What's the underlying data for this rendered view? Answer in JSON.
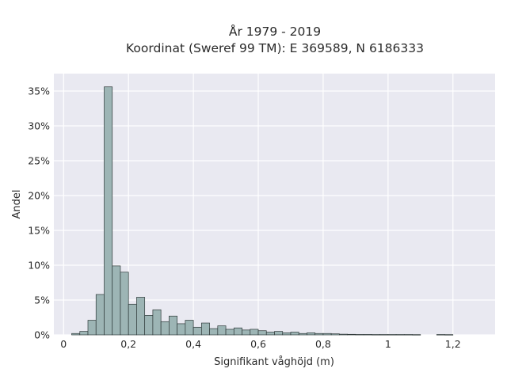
{
  "chart_data": {
    "type": "bar",
    "title_line1": "År 1979 - 2019",
    "title_line2": "Koordinat (Sweref 99 TM): E 369589, N 6186333",
    "xlabel": "Signifikant våghöjd (m)",
    "ylabel": "Andel",
    "xlim": [
      -0.03,
      1.33
    ],
    "ylim": [
      0,
      0.375
    ],
    "grid": true,
    "bar_color": "#9db5b5",
    "edge_color": "#2f3a3a",
    "plot_bg": "#e9e9f1",
    "x_ticks": [
      {
        "value": 0,
        "label": "0"
      },
      {
        "value": 0.2,
        "label": "0,2"
      },
      {
        "value": 0.4,
        "label": "0,4"
      },
      {
        "value": 0.6,
        "label": "0,6"
      },
      {
        "value": 0.8,
        "label": "0,8"
      },
      {
        "value": 1.0,
        "label": "1"
      },
      {
        "value": 1.2,
        "label": "1,2"
      }
    ],
    "y_ticks": [
      {
        "value": 0,
        "label": "0%"
      },
      {
        "value": 0.05,
        "label": "5%"
      },
      {
        "value": 0.1,
        "label": "10%"
      },
      {
        "value": 0.15,
        "label": "15%"
      },
      {
        "value": 0.2,
        "label": "20%"
      },
      {
        "value": 0.25,
        "label": "25%"
      },
      {
        "value": 0.3,
        "label": "30%"
      },
      {
        "value": 0.35,
        "label": "35%"
      }
    ],
    "bin_width": 0.025,
    "bin_starts": [
      0.025,
      0.05,
      0.075,
      0.1,
      0.125,
      0.15,
      0.175,
      0.2,
      0.225,
      0.25,
      0.275,
      0.3,
      0.325,
      0.35,
      0.375,
      0.4,
      0.425,
      0.45,
      0.475,
      0.5,
      0.525,
      0.55,
      0.575,
      0.6,
      0.625,
      0.65,
      0.675,
      0.7,
      0.725,
      0.75,
      0.775,
      0.8,
      0.825,
      0.85,
      0.875,
      0.9,
      0.925,
      0.95,
      0.975,
      1.0,
      1.025,
      1.05,
      1.075,
      1.1,
      1.125,
      1.15,
      1.175
    ],
    "values": [
      0.002,
      0.005,
      0.021,
      0.058,
      0.356,
      0.099,
      0.09,
      0.044,
      0.054,
      0.028,
      0.036,
      0.019,
      0.027,
      0.016,
      0.021,
      0.011,
      0.017,
      0.009,
      0.013,
      0.008,
      0.01,
      0.007,
      0.008,
      0.006,
      0.004,
      0.005,
      0.003,
      0.004,
      0.002,
      0.003,
      0.002,
      0.002,
      0.0015,
      0.001,
      0.0008,
      0.0006,
      0.0006,
      0.0005,
      0.0005,
      0.0005,
      0.0005,
      0.0005,
      0.0004,
      0,
      0,
      0.0005,
      0.0004
    ]
  }
}
